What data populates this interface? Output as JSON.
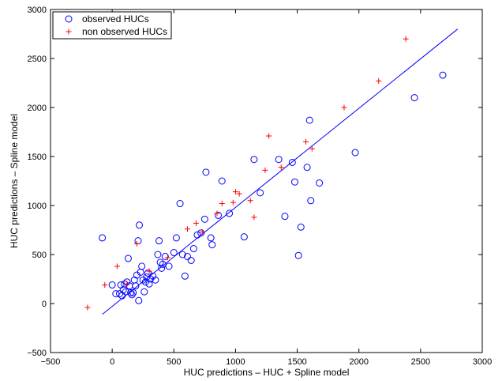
{
  "chart_data": {
    "type": "scatter",
    "title": "",
    "xlabel": "HUC predictions – HUC + Spline model",
    "ylabel": "HUC predictions – Spline model",
    "xlim": [
      -500,
      3000
    ],
    "ylim": [
      -500,
      3000
    ],
    "xticks": [
      -500,
      0,
      500,
      1000,
      1500,
      2000,
      2500,
      3000
    ],
    "yticks": [
      -500,
      0,
      500,
      1000,
      1500,
      2000,
      2500,
      3000
    ],
    "grid": false,
    "legend_position": "top-left",
    "colors": {
      "observed": "#0000ff",
      "non_observed": "#ff0000",
      "fit_line": "#0000ff"
    },
    "series": [
      {
        "name": "observed HUCs",
        "marker": "circle",
        "points": [
          [
            -80,
            670
          ],
          [
            0,
            190
          ],
          [
            30,
            100
          ],
          [
            60,
            100
          ],
          [
            70,
            190
          ],
          [
            80,
            80
          ],
          [
            90,
            140
          ],
          [
            100,
            200
          ],
          [
            110,
            120
          ],
          [
            120,
            220
          ],
          [
            130,
            460
          ],
          [
            140,
            180
          ],
          [
            150,
            110
          ],
          [
            160,
            90
          ],
          [
            170,
            110
          ],
          [
            180,
            240
          ],
          [
            190,
            180
          ],
          [
            200,
            290
          ],
          [
            210,
            640
          ],
          [
            215,
            30
          ],
          [
            220,
            800
          ],
          [
            230,
            320
          ],
          [
            240,
            380
          ],
          [
            250,
            240
          ],
          [
            260,
            120
          ],
          [
            270,
            220
          ],
          [
            280,
            270
          ],
          [
            290,
            310
          ],
          [
            300,
            200
          ],
          [
            310,
            250
          ],
          [
            330,
            280
          ],
          [
            350,
            240
          ],
          [
            370,
            500
          ],
          [
            380,
            640
          ],
          [
            390,
            420
          ],
          [
            400,
            360
          ],
          [
            410,
            400
          ],
          [
            430,
            480
          ],
          [
            460,
            380
          ],
          [
            500,
            520
          ],
          [
            520,
            670
          ],
          [
            550,
            1020
          ],
          [
            570,
            500
          ],
          [
            590,
            280
          ],
          [
            610,
            480
          ],
          [
            640,
            440
          ],
          [
            660,
            560
          ],
          [
            690,
            700
          ],
          [
            720,
            720
          ],
          [
            750,
            860
          ],
          [
            760,
            1340
          ],
          [
            800,
            670
          ],
          [
            810,
            600
          ],
          [
            860,
            900
          ],
          [
            890,
            1250
          ],
          [
            950,
            920
          ],
          [
            1070,
            680
          ],
          [
            1150,
            1470
          ],
          [
            1200,
            1130
          ],
          [
            1350,
            1470
          ],
          [
            1400,
            890
          ],
          [
            1460,
            1440
          ],
          [
            1480,
            1240
          ],
          [
            1510,
            490
          ],
          [
            1530,
            780
          ],
          [
            1580,
            1390
          ],
          [
            1600,
            1870
          ],
          [
            1610,
            1050
          ],
          [
            1680,
            1230
          ],
          [
            1970,
            1540
          ],
          [
            2450,
            2100
          ],
          [
            2680,
            2330
          ]
        ]
      },
      {
        "name": "non observed HUCs",
        "marker": "plus",
        "points": [
          [
            -200,
            -40
          ],
          [
            -60,
            190
          ],
          [
            40,
            380
          ],
          [
            120,
            200
          ],
          [
            200,
            610
          ],
          [
            300,
            330
          ],
          [
            450,
            470
          ],
          [
            610,
            760
          ],
          [
            680,
            820
          ],
          [
            730,
            730
          ],
          [
            850,
            920
          ],
          [
            890,
            1020
          ],
          [
            980,
            1030
          ],
          [
            1000,
            1140
          ],
          [
            1030,
            1120
          ],
          [
            1120,
            1050
          ],
          [
            1150,
            880
          ],
          [
            1240,
            1360
          ],
          [
            1270,
            1710
          ],
          [
            1370,
            1390
          ],
          [
            1570,
            1650
          ],
          [
            1620,
            1580
          ],
          [
            1880,
            2000
          ],
          [
            2160,
            2270
          ],
          [
            2380,
            2700
          ]
        ]
      }
    ],
    "fit_line": {
      "x": [
        -80,
        2800
      ],
      "y": [
        -110,
        2800
      ]
    }
  }
}
